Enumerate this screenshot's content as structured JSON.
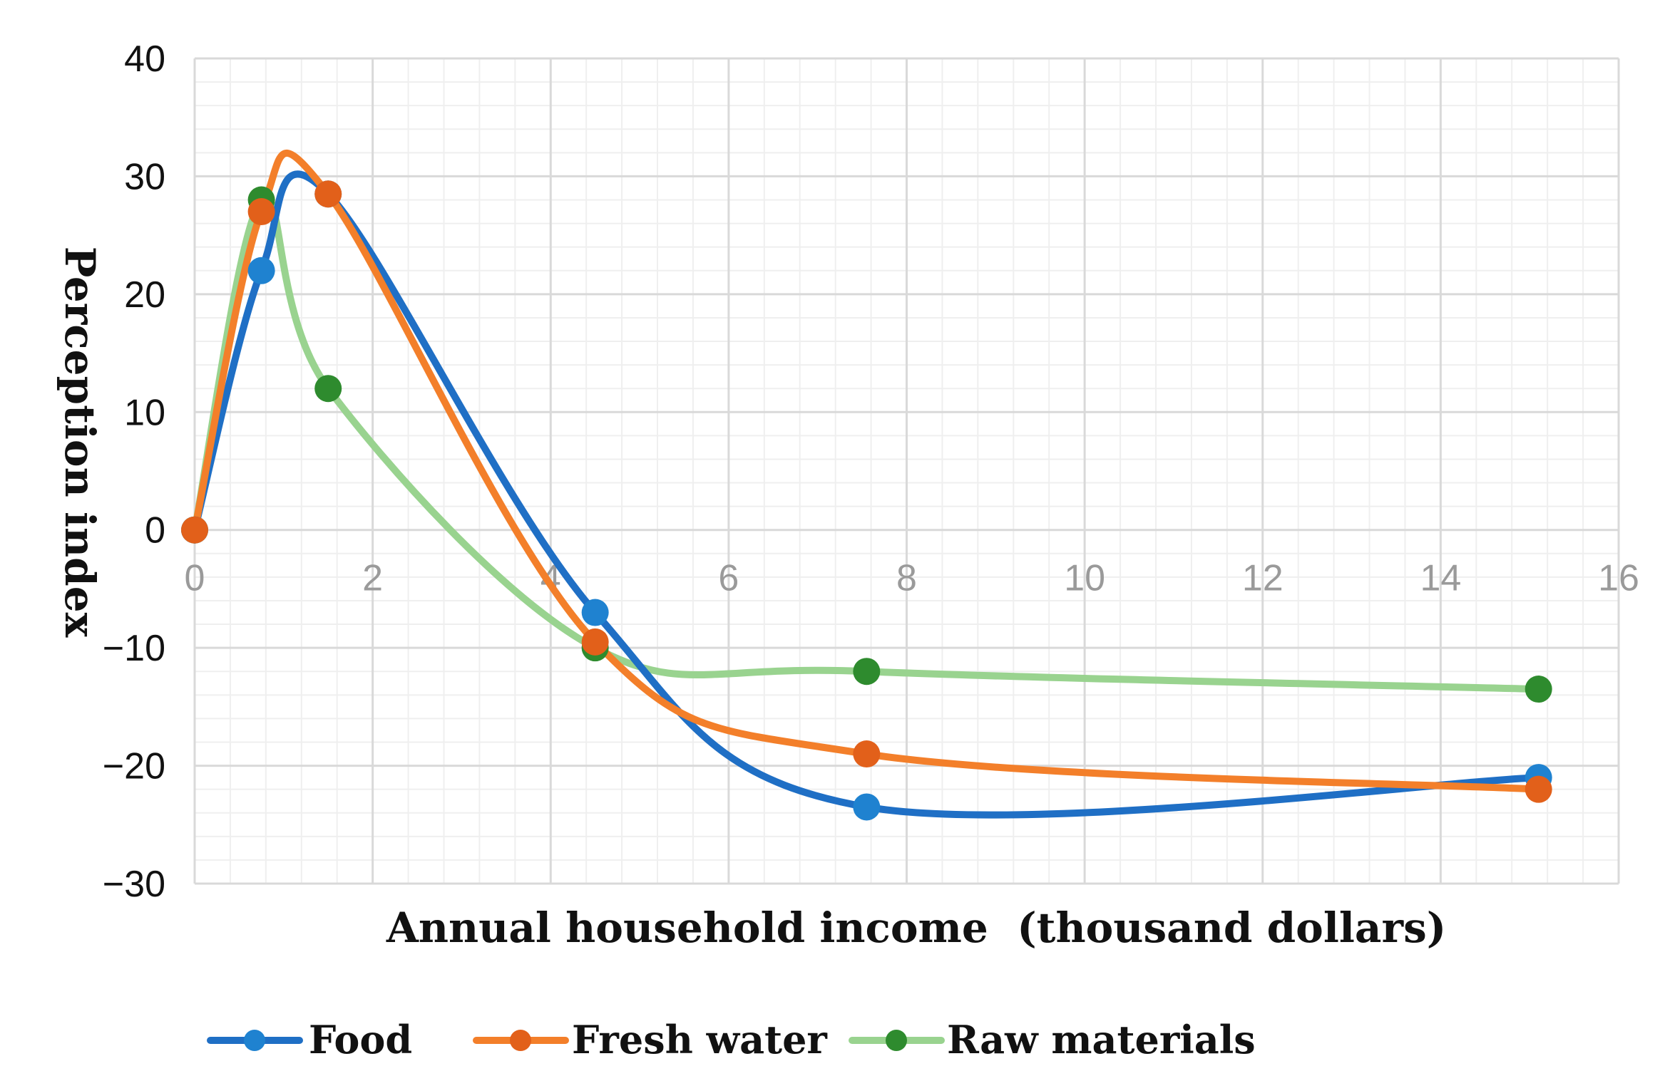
{
  "chart_data": {
    "type": "line",
    "title": "",
    "xlabel": "Annual household income  (thousand dollars)",
    "ylabel": "Perception index",
    "xlim": [
      0,
      16
    ],
    "ylim": [
      -30,
      40
    ],
    "xticks": [
      0,
      2,
      4,
      6,
      8,
      10,
      12,
      14,
      16
    ],
    "yticks": [
      -30,
      -20,
      -10,
      0,
      10,
      20,
      30,
      40
    ],
    "x_tick_labels": [
      "0",
      "2",
      "4",
      "6",
      "8",
      "10",
      "12",
      "14",
      "16"
    ],
    "y_tick_labels": [
      "−30",
      "−20",
      "−10",
      "0",
      "10",
      "20",
      "30",
      "40"
    ],
    "grid": true,
    "legend_position": "bottom",
    "series": [
      {
        "name": "Food",
        "color": "#1f6fc5",
        "marker_color": "#1f82d0",
        "x": [
          0,
          0.75,
          1.5,
          4.5,
          7.55,
          15.1
        ],
        "y": [
          0,
          22,
          28.5,
          -7,
          -23.5,
          -21
        ]
      },
      {
        "name": "Fresh water",
        "color": "#f37f2a",
        "marker_color": "#e2601a",
        "x": [
          0,
          0.75,
          1.5,
          4.5,
          7.55,
          15.1
        ],
        "y": [
          0,
          27,
          28.5,
          -9.5,
          -19,
          -22
        ]
      },
      {
        "name": "Raw materials",
        "color": "#99d38f",
        "marker_color": "#2e8b2e",
        "x": [
          0,
          0.75,
          1.5,
          4.5,
          7.55,
          15.1
        ],
        "y": [
          0,
          28,
          12,
          -10,
          -12,
          -13.5
        ]
      }
    ]
  }
}
